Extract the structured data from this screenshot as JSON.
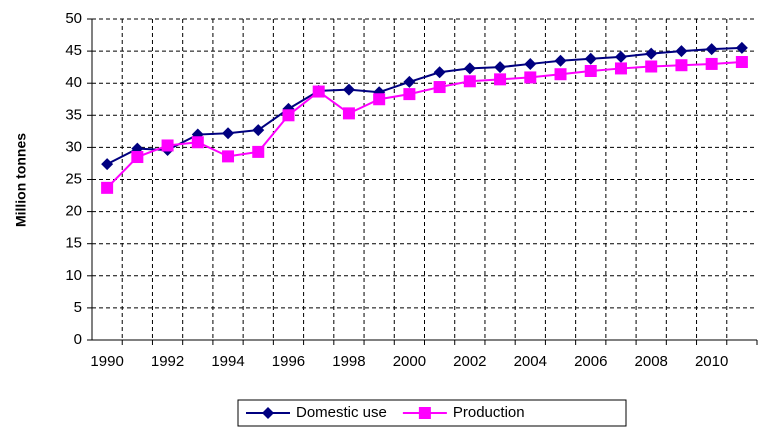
{
  "chart_data": {
    "type": "line",
    "y_label": "Million tonnes",
    "categories": [
      "1990",
      null,
      "1992",
      null,
      "1994",
      null,
      "1996",
      null,
      "1998",
      null,
      "2000",
      null,
      "2002",
      null,
      "2004",
      null,
      "2006",
      null,
      "2008",
      null,
      "2010",
      null
    ],
    "series": [
      {
        "name": "Domestic use",
        "color": "#000080",
        "marker": "diamond",
        "values": [
          27.4,
          29.8,
          29.6,
          32.0,
          32.2,
          32.7,
          36.0,
          38.8,
          39.0,
          38.6,
          40.2,
          41.7,
          42.3,
          42.5,
          43.0,
          43.5,
          43.8,
          44.1,
          44.6,
          45.0,
          45.3,
          45.5
        ]
      },
      {
        "name": "Production",
        "color": "#ff00ff",
        "marker": "square",
        "values": [
          23.7,
          28.5,
          30.3,
          30.8,
          28.6,
          29.3,
          35.0,
          38.7,
          35.3,
          37.5,
          38.3,
          39.4,
          40.3,
          40.6,
          40.9,
          41.4,
          41.9,
          42.3,
          42.6,
          42.8,
          43.0,
          43.3
        ]
      }
    ],
    "ylim": [
      0,
      50
    ],
    "yticks": [
      0,
      5,
      10,
      15,
      20,
      25,
      30,
      35,
      40,
      45,
      50
    ],
    "grid": true,
    "legend": "bottom"
  }
}
